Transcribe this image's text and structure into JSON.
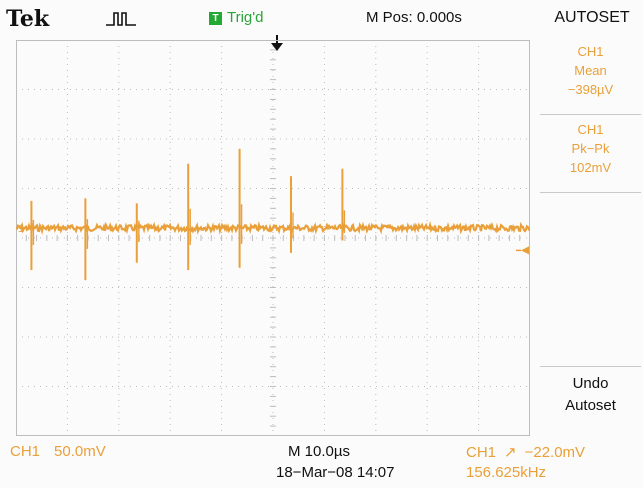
{
  "header": {
    "brand": "Tek",
    "acquisition_icon": "pulse-run-icon",
    "trigger_badge": "T",
    "trigger_status": "Trig'd",
    "horizontal_position": "M Pos: 0.000s",
    "menu_title": "AUTOSET"
  },
  "side_menu": {
    "mean": {
      "channel": "CH1",
      "label": "Mean",
      "value": "−398µV"
    },
    "pkpk": {
      "channel": "CH1",
      "label": "Pk−Pk",
      "value": "102mV"
    },
    "undo": {
      "line1": "Undo",
      "line2": "Autoset"
    }
  },
  "footer": {
    "channel": "CH1",
    "volts_per_div": "50.0mV",
    "time_per_div": "M 10.0µs",
    "datetime": "18−Mar−08 14:07",
    "trigger_channel": "CH1",
    "trigger_slope_symbol": "↗",
    "trigger_level": "−22.0mV",
    "frequency": "156.625kHz"
  },
  "screen_markers": {
    "channel_marker": "1"
  },
  "waveform": {
    "color": "#e9a03a",
    "baseline_div": 0.2,
    "time_per_div_us": 10,
    "volts_per_div_mv": 50,
    "spikes": [
      {
        "time_div": 0.3,
        "up_div": 0.55,
        "down_div": 0.85
      },
      {
        "time_div": 1.35,
        "up_div": 0.6,
        "down_div": 1.05
      },
      {
        "time_div": 2.35,
        "up_div": 0.5,
        "down_div": 0.7
      },
      {
        "time_div": 3.35,
        "up_div": 1.3,
        "down_div": 0.85
      },
      {
        "time_div": 4.35,
        "up_div": 1.6,
        "down_div": 0.8
      },
      {
        "time_div": 5.35,
        "up_div": 1.05,
        "down_div": 0.5
      },
      {
        "time_div": 6.35,
        "up_div": 1.2,
        "down_div": 0.25
      }
    ],
    "noise_amplitude_div": 0.06
  },
  "colors": {
    "trace": "#e9a03a",
    "trigger_badge": "#22aa33",
    "trigger_text": "#2aa33a",
    "grid": "#bdbdbd"
  }
}
